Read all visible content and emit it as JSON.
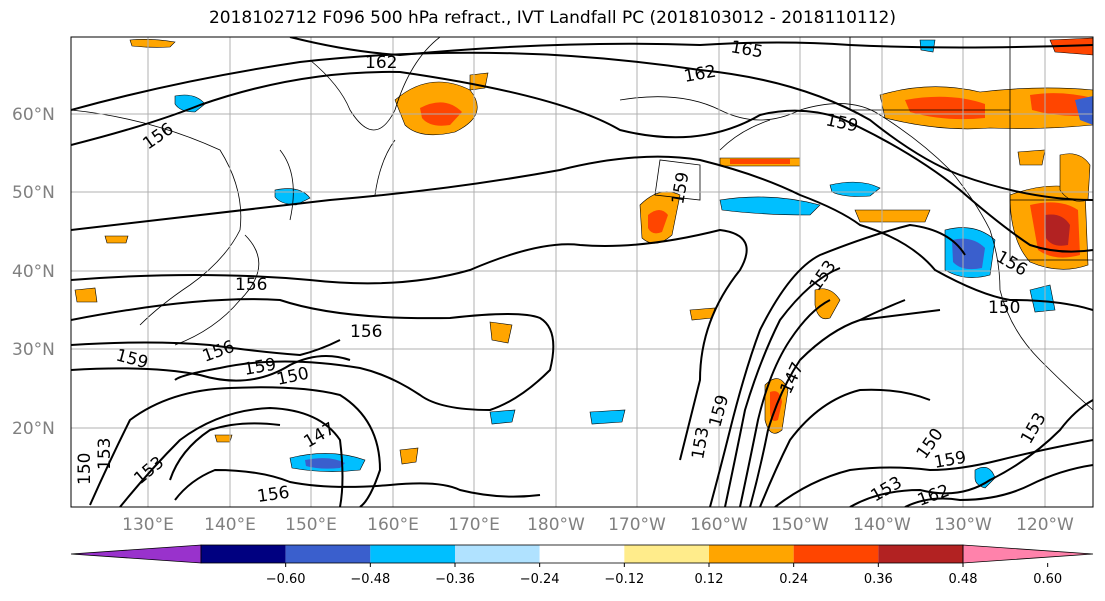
{
  "title": "2018102712 F096 500 hPa refract., IVT Landfall PC (2018103012 - 2018110112)",
  "lat_labels": [
    "60°N",
    "50°N",
    "40°N",
    "30°N",
    "20°N"
  ],
  "lon_labels": [
    "130°E",
    "140°E",
    "150°E",
    "160°E",
    "170°E",
    "180°W",
    "170°W",
    "160°W",
    "150°W",
    "140°W",
    "130°W",
    "120°W"
  ],
  "contour_labels": [
    "162",
    "165",
    "162",
    "156",
    "159",
    "159",
    "156",
    "153",
    "156",
    "150",
    "156",
    "159",
    "156",
    "159",
    "150",
    "147",
    "147",
    "159",
    "153",
    "153",
    "150",
    "153",
    "156",
    "153",
    "159",
    "162",
    "153",
    "150"
  ],
  "colorbar": {
    "ticks": [
      "−0.60",
      "−0.48",
      "−0.36",
      "−0.24",
      "−0.12",
      "0.12",
      "0.24",
      "0.36",
      "0.48",
      "0.60"
    ],
    "colors": [
      "#9932cc",
      "#000080",
      "#3a5fcd",
      "#00bfff",
      "#b0e2ff",
      "#ffffff",
      "#ffec8b",
      "#ffa500",
      "#ff4500",
      "#b22222",
      "#ff82ab"
    ]
  }
}
